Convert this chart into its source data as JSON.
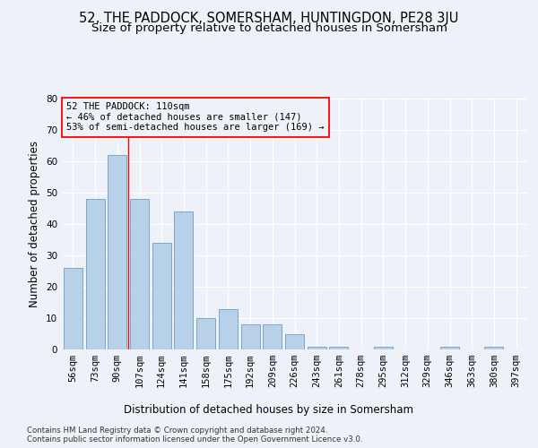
{
  "title1": "52, THE PADDOCK, SOMERSHAM, HUNTINGDON, PE28 3JU",
  "title2": "Size of property relative to detached houses in Somersham",
  "xlabel": "Distribution of detached houses by size in Somersham",
  "ylabel": "Number of detached properties",
  "categories": [
    "56sqm",
    "73sqm",
    "90sqm",
    "107sqm",
    "124sqm",
    "141sqm",
    "158sqm",
    "175sqm",
    "192sqm",
    "209sqm",
    "226sqm",
    "243sqm",
    "261sqm",
    "278sqm",
    "295sqm",
    "312sqm",
    "329sqm",
    "346sqm",
    "363sqm",
    "380sqm",
    "397sqm"
  ],
  "values": [
    26,
    48,
    62,
    48,
    34,
    44,
    10,
    13,
    8,
    8,
    5,
    1,
    1,
    0,
    1,
    0,
    0,
    1,
    0,
    1,
    0
  ],
  "bar_color": "#b8d0e8",
  "bar_edge_color": "#6a9fc8",
  "red_line_x": 2.5,
  "annotation_box_text": "52 THE PADDOCK: 110sqm\n← 46% of detached houses are smaller (147)\n53% of semi-detached houses are larger (169) →",
  "ylim": [
    0,
    80
  ],
  "yticks": [
    0,
    10,
    20,
    30,
    40,
    50,
    60,
    70,
    80
  ],
  "footer1": "Contains HM Land Registry data © Crown copyright and database right 2024.",
  "footer2": "Contains public sector information licensed under the Open Government Licence v3.0.",
  "bg_color": "#eef2f8",
  "grid_color": "#ffffff",
  "title1_fontsize": 10.5,
  "title2_fontsize": 9.5,
  "xlabel_fontsize": 8.5,
  "ylabel_fontsize": 8.5,
  "tick_fontsize": 7.5,
  "footer_fontsize": 6.2,
  "annot_fontsize": 7.5
}
